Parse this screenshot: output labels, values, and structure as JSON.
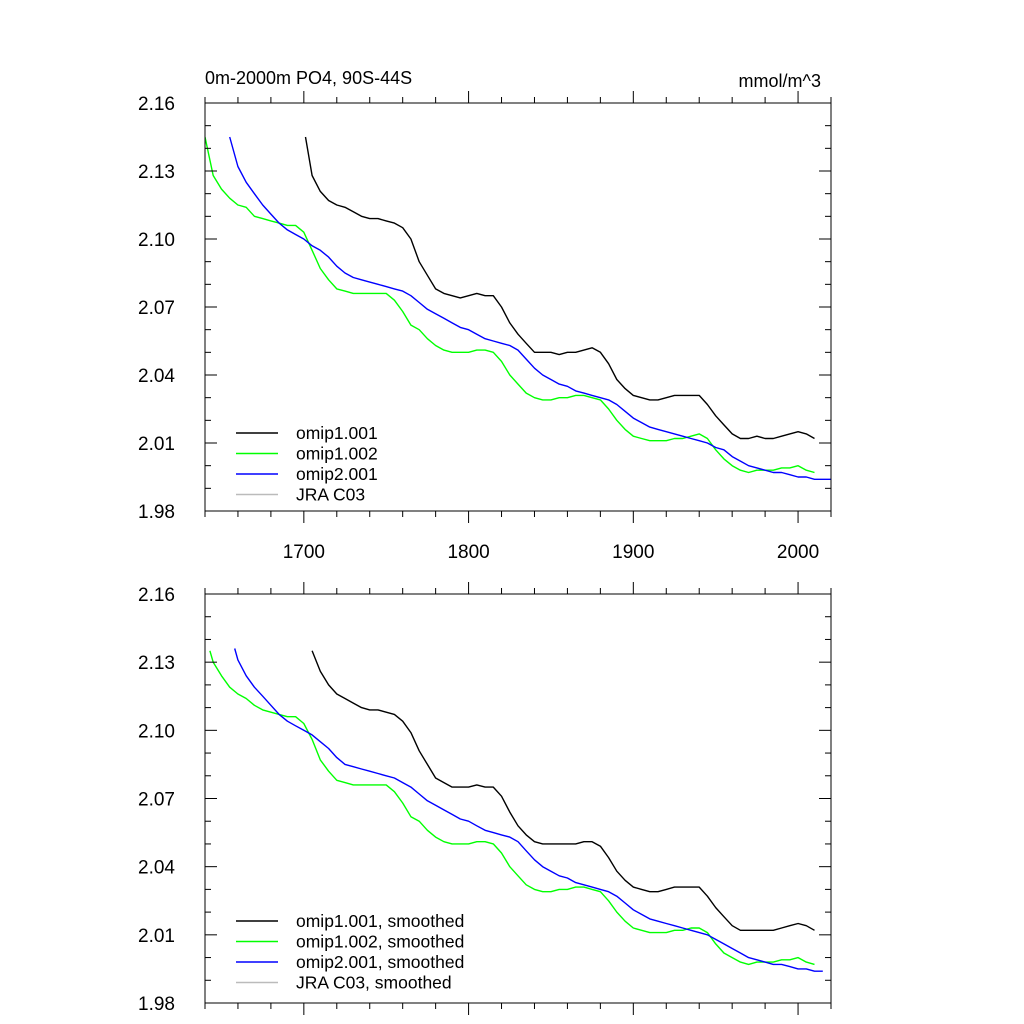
{
  "chart_data": [
    {
      "type": "line",
      "title_left": "0m-2000m PO4, 90S-44S",
      "title_right": "mmol/m^3",
      "xlim": [
        1640,
        2020
      ],
      "ylim": [
        1.98,
        2.16
      ],
      "yticks": [
        "1.98",
        "2.01",
        "2.04",
        "2.07",
        "2.10",
        "2.13",
        "2.16"
      ],
      "xticks": [
        "1700",
        "1800",
        "1900",
        "2000"
      ],
      "show_xtick_labels": true,
      "legend_position": "bottom-left",
      "series": [
        {
          "name": "omip1.001",
          "color": "#000000",
          "x": [
            1701,
            1705,
            1710,
            1715,
            1720,
            1725,
            1730,
            1735,
            1740,
            1745,
            1750,
            1755,
            1760,
            1765,
            1770,
            1775,
            1780,
            1785,
            1790,
            1795,
            1800,
            1805,
            1810,
            1815,
            1820,
            1825,
            1830,
            1835,
            1840,
            1845,
            1850,
            1855,
            1860,
            1865,
            1870,
            1875,
            1880,
            1885,
            1890,
            1895,
            1900,
            1905,
            1910,
            1915,
            1920,
            1925,
            1930,
            1935,
            1940,
            1945,
            1950,
            1955,
            1960,
            1965,
            1970,
            1975,
            1980,
            1985,
            1990,
            1995,
            2000,
            2005,
            2010
          ],
          "y": [
            2.145,
            2.128,
            2.121,
            2.117,
            2.115,
            2.114,
            2.112,
            2.11,
            2.109,
            2.109,
            2.108,
            2.107,
            2.105,
            2.1,
            2.09,
            2.084,
            2.078,
            2.076,
            2.075,
            2.074,
            2.075,
            2.076,
            2.075,
            2.075,
            2.07,
            2.063,
            2.058,
            2.054,
            2.05,
            2.05,
            2.05,
            2.049,
            2.05,
            2.05,
            2.051,
            2.052,
            2.05,
            2.045,
            2.038,
            2.034,
            2.031,
            2.03,
            2.029,
            2.029,
            2.03,
            2.031,
            2.031,
            2.031,
            2.031,
            2.027,
            2.022,
            2.018,
            2.014,
            2.012,
            2.012,
            2.013,
            2.012,
            2.012,
            2.013,
            2.014,
            2.015,
            2.014,
            2.012
          ]
        },
        {
          "name": "omip1.002",
          "color": "#00ff00",
          "x": [
            1640,
            1645,
            1650,
            1655,
            1660,
            1665,
            1670,
            1675,
            1680,
            1685,
            1690,
            1695,
            1700,
            1705,
            1710,
            1715,
            1720,
            1725,
            1730,
            1735,
            1740,
            1745,
            1750,
            1755,
            1760,
            1765,
            1770,
            1775,
            1780,
            1785,
            1790,
            1795,
            1800,
            1805,
            1810,
            1815,
            1820,
            1825,
            1830,
            1835,
            1840,
            1845,
            1850,
            1855,
            1860,
            1865,
            1870,
            1875,
            1880,
            1885,
            1890,
            1895,
            1900,
            1905,
            1910,
            1915,
            1920,
            1925,
            1930,
            1935,
            1940,
            1945,
            1950,
            1955,
            1960,
            1965,
            1970,
            1975,
            1980,
            1985,
            1990,
            1995,
            2000,
            2005,
            2010
          ],
          "y": [
            2.145,
            2.128,
            2.122,
            2.118,
            2.115,
            2.114,
            2.11,
            2.109,
            2.108,
            2.107,
            2.106,
            2.106,
            2.103,
            2.095,
            2.087,
            2.082,
            2.078,
            2.077,
            2.076,
            2.076,
            2.076,
            2.076,
            2.076,
            2.073,
            2.068,
            2.062,
            2.06,
            2.056,
            2.053,
            2.051,
            2.05,
            2.05,
            2.05,
            2.051,
            2.051,
            2.05,
            2.046,
            2.04,
            2.036,
            2.032,
            2.03,
            2.029,
            2.029,
            2.03,
            2.03,
            2.031,
            2.031,
            2.03,
            2.029,
            2.025,
            2.02,
            2.016,
            2.013,
            2.012,
            2.011,
            2.011,
            2.011,
            2.012,
            2.012,
            2.013,
            2.014,
            2.012,
            2.007,
            2.003,
            2.0,
            1.998,
            1.997,
            1.998,
            1.998,
            1.998,
            1.999,
            1.999,
            2.0,
            1.998,
            1.997
          ]
        },
        {
          "name": "omip2.001",
          "color": "#0000ff",
          "x": [
            1655,
            1660,
            1665,
            1670,
            1675,
            1680,
            1685,
            1690,
            1695,
            1700,
            1705,
            1710,
            1715,
            1720,
            1725,
            1730,
            1735,
            1740,
            1745,
            1750,
            1755,
            1760,
            1765,
            1770,
            1775,
            1780,
            1785,
            1790,
            1795,
            1800,
            1805,
            1810,
            1815,
            1820,
            1825,
            1830,
            1835,
            1840,
            1845,
            1850,
            1855,
            1860,
            1865,
            1870,
            1875,
            1880,
            1885,
            1890,
            1895,
            1900,
            1905,
            1910,
            1915,
            1920,
            1925,
            1930,
            1935,
            1940,
            1945,
            1950,
            1955,
            1960,
            1965,
            1970,
            1975,
            1980,
            1985,
            1990,
            1995,
            2000,
            2005,
            2010,
            2015,
            2020
          ],
          "y": [
            2.145,
            2.132,
            2.125,
            2.12,
            2.115,
            2.111,
            2.107,
            2.104,
            2.102,
            2.1,
            2.097,
            2.095,
            2.092,
            2.088,
            2.085,
            2.083,
            2.082,
            2.081,
            2.08,
            2.079,
            2.078,
            2.077,
            2.075,
            2.072,
            2.069,
            2.067,
            2.065,
            2.063,
            2.061,
            2.06,
            2.058,
            2.056,
            2.055,
            2.054,
            2.053,
            2.051,
            2.047,
            2.043,
            2.04,
            2.038,
            2.036,
            2.035,
            2.033,
            2.032,
            2.031,
            2.03,
            2.029,
            2.027,
            2.024,
            2.021,
            2.019,
            2.017,
            2.016,
            2.015,
            2.014,
            2.013,
            2.012,
            2.011,
            2.01,
            2.008,
            2.007,
            2.004,
            2.002,
            2.0,
            1.999,
            1.998,
            1.997,
            1.997,
            1.996,
            1.995,
            1.995,
            1.994,
            1.994,
            1.994
          ]
        },
        {
          "name": "JRA C03",
          "color": "#bbbbbb",
          "x": [],
          "y": []
        }
      ]
    },
    {
      "type": "line",
      "title_left": "",
      "title_right": "",
      "xlim": [
        1640,
        2020
      ],
      "ylim": [
        1.98,
        2.16
      ],
      "yticks": [
        "1.98",
        "2.01",
        "2.04",
        "2.07",
        "2.10",
        "2.13",
        "2.16"
      ],
      "xticks": [
        "1700",
        "1800",
        "1900",
        "2000"
      ],
      "show_xtick_labels": false,
      "legend_position": "bottom-left",
      "series": [
        {
          "name": "omip1.001, smoothed",
          "color": "#000000",
          "x": [
            1705,
            1710,
            1715,
            1720,
            1725,
            1730,
            1735,
            1740,
            1745,
            1750,
            1755,
            1760,
            1765,
            1770,
            1775,
            1780,
            1785,
            1790,
            1795,
            1800,
            1805,
            1810,
            1815,
            1820,
            1825,
            1830,
            1835,
            1840,
            1845,
            1850,
            1855,
            1860,
            1865,
            1870,
            1875,
            1880,
            1885,
            1890,
            1895,
            1900,
            1905,
            1910,
            1915,
            1920,
            1925,
            1930,
            1935,
            1940,
            1945,
            1950,
            1955,
            1960,
            1965,
            1970,
            1975,
            1980,
            1985,
            1990,
            1995,
            2000,
            2005,
            2010
          ],
          "y": [
            2.135,
            2.126,
            2.12,
            2.116,
            2.114,
            2.112,
            2.11,
            2.109,
            2.109,
            2.108,
            2.107,
            2.104,
            2.099,
            2.091,
            2.085,
            2.079,
            2.077,
            2.075,
            2.075,
            2.075,
            2.076,
            2.075,
            2.075,
            2.071,
            2.064,
            2.058,
            2.054,
            2.051,
            2.05,
            2.05,
            2.05,
            2.05,
            2.05,
            2.051,
            2.051,
            2.049,
            2.044,
            2.038,
            2.034,
            2.031,
            2.03,
            2.029,
            2.029,
            2.03,
            2.031,
            2.031,
            2.031,
            2.031,
            2.027,
            2.022,
            2.018,
            2.014,
            2.012,
            2.012,
            2.012,
            2.012,
            2.012,
            2.013,
            2.014,
            2.015,
            2.014,
            2.012
          ]
        },
        {
          "name": "omip1.002, smoothed",
          "color": "#00ff00",
          "x": [
            1643,
            1645,
            1650,
            1655,
            1660,
            1665,
            1670,
            1675,
            1680,
            1685,
            1690,
            1695,
            1700,
            1705,
            1710,
            1715,
            1720,
            1725,
            1730,
            1735,
            1740,
            1745,
            1750,
            1755,
            1760,
            1765,
            1770,
            1775,
            1780,
            1785,
            1790,
            1795,
            1800,
            1805,
            1810,
            1815,
            1820,
            1825,
            1830,
            1835,
            1840,
            1845,
            1850,
            1855,
            1860,
            1865,
            1870,
            1875,
            1880,
            1885,
            1890,
            1895,
            1900,
            1905,
            1910,
            1915,
            1920,
            1925,
            1930,
            1935,
            1940,
            1945,
            1950,
            1955,
            1960,
            1965,
            1970,
            1975,
            1980,
            1985,
            1990,
            1995,
            2000,
            2005,
            2010
          ],
          "y": [
            2.135,
            2.13,
            2.124,
            2.119,
            2.116,
            2.114,
            2.111,
            2.109,
            2.108,
            2.107,
            2.106,
            2.106,
            2.103,
            2.096,
            2.087,
            2.082,
            2.078,
            2.077,
            2.076,
            2.076,
            2.076,
            2.076,
            2.076,
            2.073,
            2.068,
            2.062,
            2.06,
            2.056,
            2.053,
            2.051,
            2.05,
            2.05,
            2.05,
            2.051,
            2.051,
            2.05,
            2.046,
            2.04,
            2.036,
            2.032,
            2.03,
            2.029,
            2.029,
            2.03,
            2.03,
            2.031,
            2.031,
            2.03,
            2.029,
            2.025,
            2.02,
            2.016,
            2.013,
            2.012,
            2.011,
            2.011,
            2.011,
            2.012,
            2.012,
            2.013,
            2.013,
            2.011,
            2.006,
            2.002,
            2.0,
            1.998,
            1.997,
            1.998,
            1.998,
            1.998,
            1.999,
            1.999,
            2.0,
            1.998,
            1.997
          ]
        },
        {
          "name": "omip2.001, smoothed",
          "color": "#0000ff",
          "x": [
            1658,
            1660,
            1665,
            1670,
            1675,
            1680,
            1685,
            1690,
            1695,
            1700,
            1705,
            1710,
            1715,
            1720,
            1725,
            1730,
            1735,
            1740,
            1745,
            1750,
            1755,
            1760,
            1765,
            1770,
            1775,
            1780,
            1785,
            1790,
            1795,
            1800,
            1805,
            1810,
            1815,
            1820,
            1825,
            1830,
            1835,
            1840,
            1845,
            1850,
            1855,
            1860,
            1865,
            1870,
            1875,
            1880,
            1885,
            1890,
            1895,
            1900,
            1905,
            1910,
            1915,
            1920,
            1925,
            1930,
            1935,
            1940,
            1945,
            1950,
            1955,
            1960,
            1965,
            1970,
            1975,
            1980,
            1985,
            1990,
            1995,
            2000,
            2005,
            2010,
            2015
          ],
          "y": [
            2.136,
            2.131,
            2.124,
            2.119,
            2.115,
            2.111,
            2.107,
            2.104,
            2.102,
            2.1,
            2.098,
            2.095,
            2.092,
            2.088,
            2.085,
            2.084,
            2.083,
            2.082,
            2.081,
            2.08,
            2.079,
            2.077,
            2.075,
            2.072,
            2.069,
            2.067,
            2.065,
            2.063,
            2.061,
            2.06,
            2.058,
            2.056,
            2.055,
            2.054,
            2.053,
            2.051,
            2.047,
            2.043,
            2.04,
            2.038,
            2.036,
            2.035,
            2.033,
            2.032,
            2.031,
            2.03,
            2.029,
            2.027,
            2.024,
            2.021,
            2.019,
            2.017,
            2.016,
            2.015,
            2.014,
            2.013,
            2.012,
            2.011,
            2.01,
            2.008,
            2.006,
            2.004,
            2.002,
            2.0,
            1.999,
            1.998,
            1.997,
            1.997,
            1.996,
            1.995,
            1.995,
            1.994,
            1.994
          ]
        },
        {
          "name": "JRA C03, smoothed",
          "color": "#bbbbbb",
          "x": [],
          "y": []
        }
      ]
    }
  ]
}
